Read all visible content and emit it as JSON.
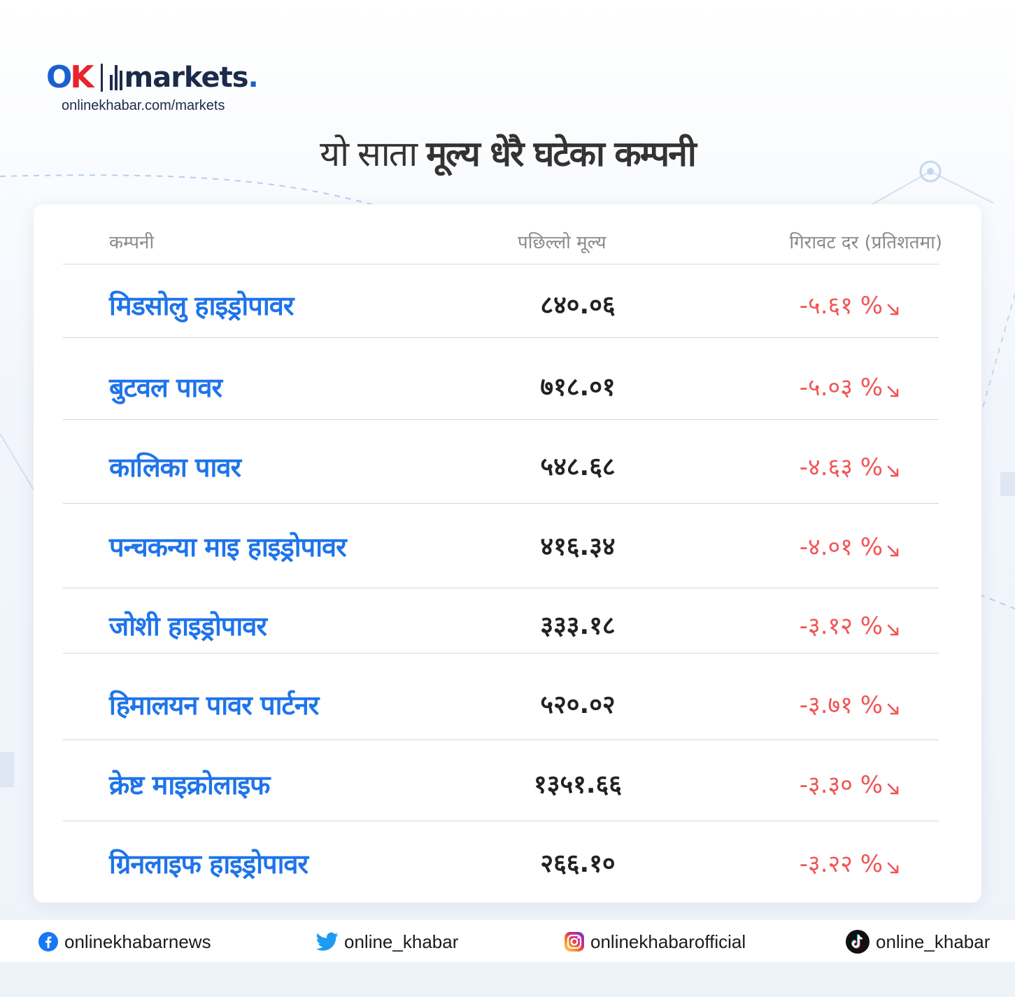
{
  "brand": {
    "logo_ok": "OK",
    "logo_word": "markets",
    "logo_dot": ".",
    "site_url": "onlinekhabar.com/markets"
  },
  "headline": {
    "light": "यो साता",
    "bold": "मूल्य धेरै घटेका कम्पनी"
  },
  "table": {
    "columns": [
      "कम्पनी",
      "पछिल्लो मूल्य",
      "गिरावट दर (प्रतिशतमा)"
    ],
    "rows": [
      {
        "company": "मिडसोलु हाइड्रोपावर",
        "last_price": "८४०.०६",
        "decline": "-५.६१ %"
      },
      {
        "company": "बुटवल पावर",
        "last_price": "७१८.०१",
        "decline": "-५.०३ %"
      },
      {
        "company": "कालिका पावर",
        "last_price": "५४८.६८",
        "decline": "-४.६३ %"
      },
      {
        "company": "पन्चकन्या माइ हाइड्रोपावर",
        "last_price": "४१६.३४",
        "decline": "-४.०१ %"
      },
      {
        "company": "जोशी हाइड्रोपावर",
        "last_price": "३३३.१८",
        "decline": "-३.१२ %"
      },
      {
        "company": "हिमालयन पावर पार्टनर",
        "last_price": "५२०.०२",
        "decline": "-३.७१ %"
      },
      {
        "company": "क्रेष्ट माइक्रोलाइफ",
        "last_price": "१३५१.६६",
        "decline": "-३.३० %"
      },
      {
        "company": "ग्रिनलाइफ हाइड्रोपावर",
        "last_price": "२६६.१०",
        "decline": "-३.२२ %"
      }
    ],
    "trend_icon": "arrow-down-right-icon"
  },
  "footer": {
    "facebook": {
      "icon": "facebook-icon",
      "handle": "onlinekhabarnews"
    },
    "twitter": {
      "icon": "twitter-icon",
      "handle": "online_khabar"
    },
    "instagram": {
      "icon": "instagram-icon",
      "handle": "onlinekhabarofficial"
    },
    "tiktok": {
      "icon": "tiktok-icon",
      "handle": "online_khabar"
    }
  },
  "colors": {
    "company_blue": "#1e74ea",
    "decline_red": "#f05555",
    "brand_blue": "#1b5fd0",
    "brand_red": "#e8232b"
  }
}
